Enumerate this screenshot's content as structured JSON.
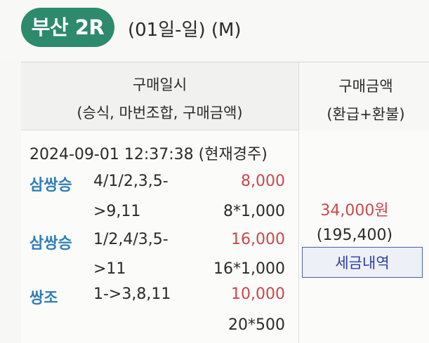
{
  "header": {
    "race_badge": "부산 2R",
    "race_date": "(01일-일) (M)"
  },
  "table": {
    "left_header_line1": "구매일시",
    "left_header_line2": "(승식, 마번조합, 구매금액)",
    "right_header_line1": "구매금액",
    "right_header_line2": "(환급+환불)",
    "timestamp": "2024-09-01 12:37:38 (현재경주)",
    "bets": [
      {
        "type": "삼쌍승",
        "combo": "4/1/2,3,5-",
        "amount": "8,000",
        "combo_cont": ">9,11",
        "unit": "8*1,000"
      },
      {
        "type": "삼쌍승",
        "combo": "1/2,4/3,5-",
        "amount": "16,000",
        "combo_cont": ">11",
        "unit": "16*1,000"
      },
      {
        "type": "쌍조",
        "combo": "1->3,8,11",
        "amount": "10,000",
        "combo_cont": "",
        "unit": "20*500"
      }
    ],
    "total_amount": "34,000원",
    "refund_amount": "(195,400)",
    "tax_button_label": "세금내역"
  },
  "colors": {
    "badge_green": "#2e8a6c",
    "bet_type_blue": "#2f7fb8",
    "amount_red": "#c9484b",
    "button_border": "#4a5ea8"
  }
}
